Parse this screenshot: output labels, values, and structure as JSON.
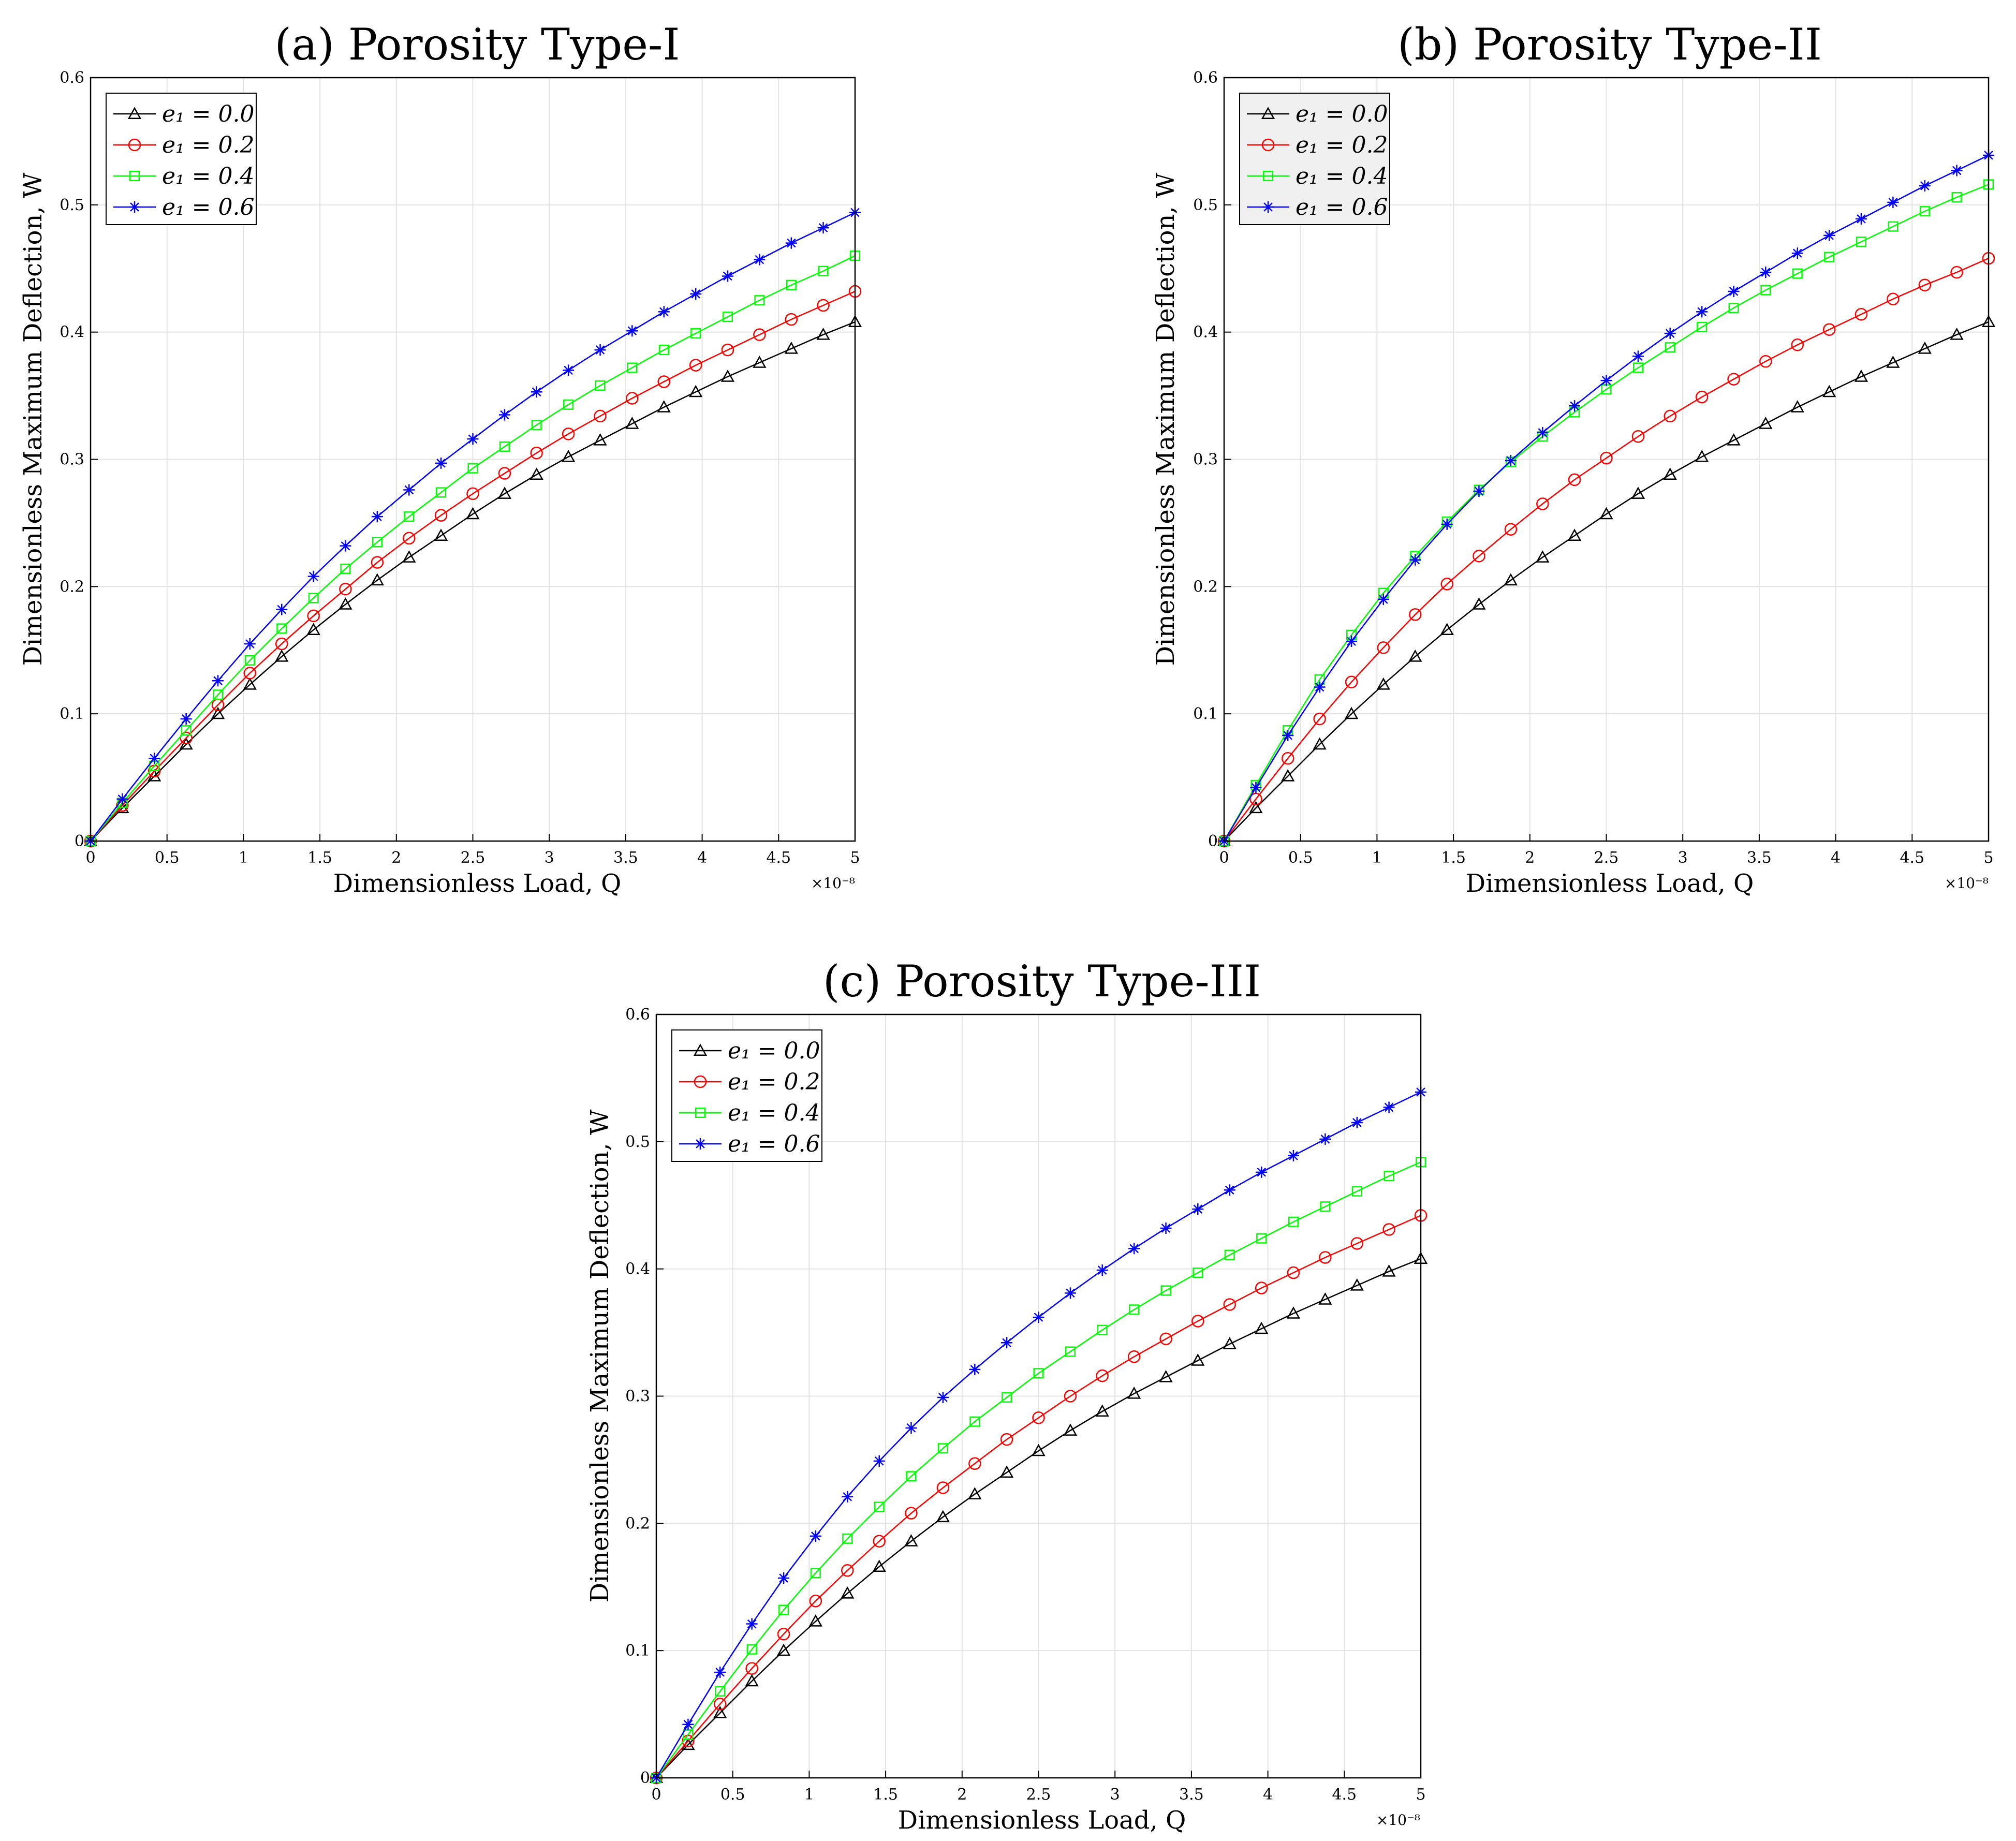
{
  "chart_data": [
    {
      "type": "line",
      "title": "(a) Porosity Type-I",
      "xlabel": "Dimensionless Load, Q",
      "ylabel": "Dimensionless Maximum Deflection, W",
      "x_exponent": "×10⁻⁸",
      "xlim": [
        0,
        5
      ],
      "ylim": [
        0,
        0.6
      ],
      "xticks": [
        "0",
        "0.5",
        "1",
        "1.5",
        "2",
        "2.5",
        "3",
        "3.5",
        "4",
        "4.5",
        "5"
      ],
      "yticks": [
        "0",
        "0.1",
        "0.2",
        "0.3",
        "0.4",
        "0.5",
        "0.6"
      ],
      "grid": true,
      "legend_position": "top-left",
      "x": [
        0,
        0.208,
        0.417,
        0.625,
        0.833,
        1.042,
        1.25,
        1.458,
        1.667,
        1.875,
        2.083,
        2.292,
        2.5,
        2.708,
        2.917,
        3.125,
        3.333,
        3.542,
        3.75,
        3.958,
        4.167,
        4.375,
        4.583,
        4.792,
        5.0
      ],
      "series": [
        {
          "name": "e₁ = 0.0",
          "color": "#000000",
          "marker": "triangle",
          "values": [
            0,
            0.026,
            0.051,
            0.076,
            0.1,
            0.123,
            0.145,
            0.166,
            0.186,
            0.205,
            0.223,
            0.24,
            0.257,
            0.273,
            0.288,
            0.302,
            0.315,
            0.328,
            0.341,
            0.353,
            0.365,
            0.376,
            0.387,
            0.398,
            0.408
          ]
        },
        {
          "name": "e₁ = 0.2",
          "color": "#ff0000",
          "marker": "circle",
          "values": [
            0,
            0.028,
            0.055,
            0.081,
            0.107,
            0.132,
            0.155,
            0.177,
            0.198,
            0.219,
            0.238,
            0.256,
            0.273,
            0.289,
            0.305,
            0.32,
            0.334,
            0.348,
            0.361,
            0.374,
            0.386,
            0.398,
            0.41,
            0.421,
            0.432
          ]
        },
        {
          "name": "e₁ = 0.4",
          "color": "#00ff00",
          "marker": "square",
          "values": [
            0,
            0.03,
            0.059,
            0.087,
            0.115,
            0.142,
            0.167,
            0.191,
            0.214,
            0.235,
            0.255,
            0.274,
            0.293,
            0.31,
            0.327,
            0.343,
            0.358,
            0.372,
            0.386,
            0.399,
            0.412,
            0.425,
            0.437,
            0.448,
            0.46
          ]
        },
        {
          "name": "e₁ = 0.6",
          "color": "#0000ff",
          "marker": "asterisk",
          "values": [
            0,
            0.033,
            0.065,
            0.096,
            0.126,
            0.155,
            0.182,
            0.208,
            0.232,
            0.255,
            0.276,
            0.297,
            0.316,
            0.335,
            0.353,
            0.37,
            0.386,
            0.401,
            0.416,
            0.43,
            0.444,
            0.457,
            0.47,
            0.482,
            0.494
          ]
        }
      ]
    },
    {
      "type": "line",
      "title": "(b) Porosity Type-II",
      "xlabel": "Dimensionless Load, Q",
      "ylabel": "Dimensionless Maximum Deflection, W",
      "x_exponent": "×10⁻⁸",
      "xlim": [
        0,
        5
      ],
      "ylim": [
        0,
        0.6
      ],
      "xticks": [
        "0",
        "0.5",
        "1",
        "1.5",
        "2",
        "2.5",
        "3",
        "3.5",
        "4",
        "4.5",
        "5"
      ],
      "yticks": [
        "0",
        "0.1",
        "0.2",
        "0.3",
        "0.4",
        "0.5",
        "0.6"
      ],
      "grid": true,
      "legend_position": "top-left",
      "x": [
        0,
        0.208,
        0.417,
        0.625,
        0.833,
        1.042,
        1.25,
        1.458,
        1.667,
        1.875,
        2.083,
        2.292,
        2.5,
        2.708,
        2.917,
        3.125,
        3.333,
        3.542,
        3.75,
        3.958,
        4.167,
        4.375,
        4.583,
        4.792,
        5.0
      ],
      "series": [
        {
          "name": "e₁ = 0.0",
          "color": "#000000",
          "marker": "triangle",
          "values": [
            0,
            0.026,
            0.051,
            0.076,
            0.1,
            0.123,
            0.145,
            0.166,
            0.186,
            0.205,
            0.223,
            0.24,
            0.257,
            0.273,
            0.288,
            0.302,
            0.315,
            0.328,
            0.341,
            0.353,
            0.365,
            0.376,
            0.387,
            0.398,
            0.408
          ]
        },
        {
          "name": "e₁ = 0.2",
          "color": "#ff0000",
          "marker": "circle",
          "values": [
            0,
            0.033,
            0.065,
            0.096,
            0.125,
            0.152,
            0.178,
            0.202,
            0.224,
            0.245,
            0.265,
            0.284,
            0.301,
            0.318,
            0.334,
            0.349,
            0.363,
            0.377,
            0.39,
            0.402,
            0.414,
            0.426,
            0.437,
            0.447,
            0.458
          ]
        },
        {
          "name": "e₁ = 0.4",
          "color": "#00ff00",
          "marker": "square",
          "values": [
            0,
            0.044,
            0.087,
            0.127,
            0.162,
            0.195,
            0.224,
            0.251,
            0.276,
            0.298,
            0.318,
            0.337,
            0.355,
            0.372,
            0.388,
            0.404,
            0.419,
            0.433,
            0.446,
            0.459,
            0.471,
            0.483,
            0.495,
            0.506,
            0.516
          ]
        },
        {
          "name": "e₁ = 0.6",
          "color": "#0000ff",
          "marker": "asterisk",
          "values": [
            0,
            0.042,
            0.083,
            0.121,
            0.157,
            0.19,
            0.221,
            0.249,
            0.275,
            0.299,
            0.321,
            0.342,
            0.362,
            0.381,
            0.399,
            0.416,
            0.432,
            0.447,
            0.462,
            0.476,
            0.489,
            0.502,
            0.515,
            0.527,
            0.539
          ]
        }
      ]
    },
    {
      "type": "line",
      "title": "(c) Porosity Type-III",
      "xlabel": "Dimensionless Load, Q",
      "ylabel": "Dimensionless Maximum Deflection, W",
      "x_exponent": "×10⁻⁸",
      "xlim": [
        0,
        5
      ],
      "ylim": [
        0,
        0.6
      ],
      "xticks": [
        "0",
        "0.5",
        "1",
        "1.5",
        "2",
        "2.5",
        "3",
        "3.5",
        "4",
        "4.5",
        "5"
      ],
      "yticks": [
        "0",
        "0.1",
        "0.2",
        "0.3",
        "0.4",
        "0.5",
        "0.6"
      ],
      "grid": true,
      "legend_position": "top-left",
      "x": [
        0,
        0.208,
        0.417,
        0.625,
        0.833,
        1.042,
        1.25,
        1.458,
        1.667,
        1.875,
        2.083,
        2.292,
        2.5,
        2.708,
        2.917,
        3.125,
        3.333,
        3.542,
        3.75,
        3.958,
        4.167,
        4.375,
        4.583,
        4.792,
        5.0
      ],
      "series": [
        {
          "name": "e₁ = 0.0",
          "color": "#000000",
          "marker": "triangle",
          "values": [
            0,
            0.026,
            0.051,
            0.076,
            0.1,
            0.123,
            0.145,
            0.166,
            0.186,
            0.205,
            0.223,
            0.24,
            0.257,
            0.273,
            0.288,
            0.302,
            0.315,
            0.328,
            0.341,
            0.353,
            0.365,
            0.376,
            0.387,
            0.398,
            0.408
          ]
        },
        {
          "name": "e₁ = 0.2",
          "color": "#ff0000",
          "marker": "circle",
          "values": [
            0,
            0.029,
            0.058,
            0.086,
            0.113,
            0.139,
            0.163,
            0.186,
            0.208,
            0.228,
            0.247,
            0.266,
            0.283,
            0.3,
            0.316,
            0.331,
            0.345,
            0.359,
            0.372,
            0.385,
            0.397,
            0.409,
            0.42,
            0.431,
            0.442
          ]
        },
        {
          "name": "e₁ = 0.4",
          "color": "#00ff00",
          "marker": "square",
          "values": [
            0,
            0.034,
            0.068,
            0.101,
            0.132,
            0.161,
            0.188,
            0.213,
            0.237,
            0.259,
            0.28,
            0.299,
            0.318,
            0.335,
            0.352,
            0.368,
            0.383,
            0.397,
            0.411,
            0.424,
            0.437,
            0.449,
            0.461,
            0.473,
            0.484
          ]
        },
        {
          "name": "e₁ = 0.6",
          "color": "#0000ff",
          "marker": "asterisk",
          "values": [
            0,
            0.042,
            0.083,
            0.121,
            0.157,
            0.19,
            0.221,
            0.249,
            0.275,
            0.299,
            0.321,
            0.342,
            0.362,
            0.381,
            0.399,
            0.416,
            0.432,
            0.447,
            0.462,
            0.476,
            0.489,
            0.502,
            0.515,
            0.527,
            0.539
          ]
        }
      ]
    }
  ]
}
